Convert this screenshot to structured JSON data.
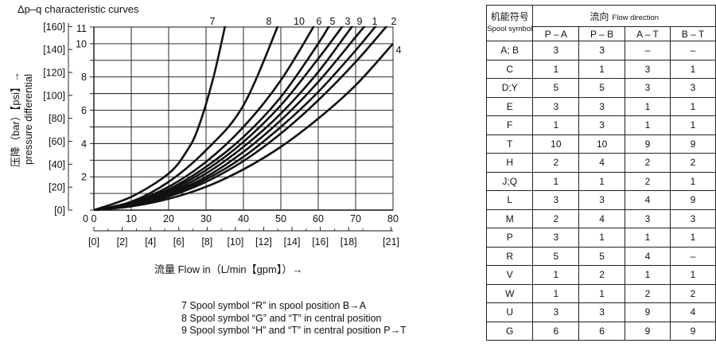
{
  "chart_data": {
    "type": "line",
    "title": "Δp–q characteristic curves",
    "xlabel": "流量 Flow in（L/min【gpm】）→",
    "ylabel_cn": "压降（bar）【psi】→",
    "ylabel_en": "pressure differential",
    "xlim": [
      0,
      80
    ],
    "ylim": [
      0,
      11
    ],
    "x_ticks": [
      "0",
      "10",
      "20",
      "30",
      "40",
      "50",
      "60",
      "70",
      "80"
    ],
    "x_ticks_gpm": [
      "[0]",
      "[2]",
      "[4]",
      "[6]",
      "[8]",
      "[10]",
      "[12]",
      "[14]",
      "[16]",
      "[18]",
      "[21]"
    ],
    "y_ticks": [
      "2",
      "4",
      "6",
      "8",
      "10",
      "11"
    ],
    "y_ticks_psi": [
      "[0]",
      "[20]",
      "[40]",
      "[60]",
      "[80]",
      "[100]",
      "[120]",
      "[140]",
      "[160]"
    ],
    "series": [
      {
        "name": "7",
        "points": [
          [
            0,
            0
          ],
          [
            10,
            0.8
          ],
          [
            20,
            2.2
          ],
          [
            25,
            3.6
          ],
          [
            28,
            5
          ],
          [
            32,
            8
          ],
          [
            35.5,
            11.5
          ]
        ]
      },
      {
        "name": "8",
        "points": [
          [
            0,
            0
          ],
          [
            10,
            0.5
          ],
          [
            20,
            1.7
          ],
          [
            30,
            3.6
          ],
          [
            40,
            6.3
          ],
          [
            50,
            11.5
          ]
        ]
      },
      {
        "name": "10",
        "points": [
          [
            0,
            0
          ],
          [
            10,
            0.45
          ],
          [
            20,
            1.4
          ],
          [
            30,
            2.9
          ],
          [
            40,
            5.0
          ],
          [
            50,
            7.8
          ],
          [
            60,
            11.5
          ]
        ]
      },
      {
        "name": "6",
        "points": [
          [
            0,
            0
          ],
          [
            10,
            0.4
          ],
          [
            20,
            1.25
          ],
          [
            30,
            2.6
          ],
          [
            40,
            4.4
          ],
          [
            50,
            6.8
          ],
          [
            60,
            10
          ],
          [
            64,
            11.5
          ]
        ]
      },
      {
        "name": "5",
        "points": [
          [
            0,
            0
          ],
          [
            10,
            0.38
          ],
          [
            20,
            1.15
          ],
          [
            30,
            2.4
          ],
          [
            40,
            4.1
          ],
          [
            50,
            6.3
          ],
          [
            60,
            9.1
          ],
          [
            68,
            11.5
          ]
        ]
      },
      {
        "name": "3",
        "points": [
          [
            0,
            0
          ],
          [
            10,
            0.35
          ],
          [
            20,
            1.05
          ],
          [
            30,
            2.2
          ],
          [
            40,
            3.8
          ],
          [
            50,
            5.8
          ],
          [
            60,
            8.3
          ],
          [
            70,
            11.3
          ],
          [
            72,
            11.5
          ]
        ]
      },
      {
        "name": "9",
        "points": [
          [
            0,
            0
          ],
          [
            10,
            0.32
          ],
          [
            20,
            0.97
          ],
          [
            30,
            2.0
          ],
          [
            40,
            3.5
          ],
          [
            50,
            5.4
          ],
          [
            60,
            7.7
          ],
          [
            70,
            10.4
          ],
          [
            74,
            11.5
          ]
        ]
      },
      {
        "name": "1",
        "points": [
          [
            0,
            0
          ],
          [
            10,
            0.3
          ],
          [
            20,
            0.9
          ],
          [
            30,
            1.85
          ],
          [
            40,
            3.2
          ],
          [
            50,
            5.0
          ],
          [
            60,
            7.1
          ],
          [
            70,
            9.6
          ],
          [
            77,
            11.5
          ]
        ]
      },
      {
        "name": "2",
        "points": [
          [
            0,
            0
          ],
          [
            10,
            0.27
          ],
          [
            20,
            0.82
          ],
          [
            30,
            1.7
          ],
          [
            40,
            2.95
          ],
          [
            50,
            4.6
          ],
          [
            60,
            6.6
          ],
          [
            70,
            8.9
          ],
          [
            80,
            11.5
          ]
        ]
      },
      {
        "name": "4",
        "points": [
          [
            0,
            0
          ],
          [
            10,
            0.22
          ],
          [
            20,
            0.68
          ],
          [
            30,
            1.4
          ],
          [
            40,
            2.45
          ],
          [
            50,
            3.8
          ],
          [
            60,
            5.5
          ],
          [
            70,
            7.5
          ],
          [
            80,
            10.0
          ]
        ]
      }
    ]
  },
  "notes": [
    "7 Spool symbol “R” in spool position B→A",
    "8 Spool symbol “G” and “T” in central position",
    "9 Spool symbol “H” and “T” in central position P→T"
  ],
  "table": {
    "symbol_cn": "机能符号",
    "symbol_en": "Spool symbol",
    "flow_cn": "流向",
    "flow_en": "Flow direction",
    "columns": [
      "P – A",
      "P – B",
      "A – T",
      "B – T"
    ],
    "rows": [
      {
        "symbol": "A; B",
        "values": [
          "3",
          "3",
          "–",
          "–"
        ]
      },
      {
        "symbol": "C",
        "values": [
          "1",
          "1",
          "3",
          "1"
        ]
      },
      {
        "symbol": "D;Y",
        "values": [
          "5",
          "5",
          "3",
          "3"
        ]
      },
      {
        "symbol": "E",
        "values": [
          "3",
          "3",
          "1",
          "1"
        ]
      },
      {
        "symbol": "F",
        "values": [
          "1",
          "3",
          "1",
          "1"
        ]
      },
      {
        "symbol": "T",
        "values": [
          "10",
          "10",
          "9",
          "9"
        ]
      },
      {
        "symbol": "H",
        "values": [
          "2",
          "4",
          "2",
          "2"
        ]
      },
      {
        "symbol": "J;Q",
        "values": [
          "1",
          "1",
          "2",
          "1"
        ]
      },
      {
        "symbol": "L",
        "values": [
          "3",
          "3",
          "4",
          "9"
        ]
      },
      {
        "symbol": "M",
        "values": [
          "2",
          "4",
          "3",
          "3"
        ]
      },
      {
        "symbol": "P",
        "values": [
          "3",
          "1",
          "1",
          "1"
        ]
      },
      {
        "symbol": "R",
        "values": [
          "5",
          "5",
          "4",
          "–"
        ]
      },
      {
        "symbol": "V",
        "values": [
          "1",
          "2",
          "1",
          "1"
        ]
      },
      {
        "symbol": "W",
        "values": [
          "1",
          "1",
          "2",
          "2"
        ]
      },
      {
        "symbol": "U",
        "values": [
          "3",
          "3",
          "9",
          "4"
        ]
      },
      {
        "symbol": "G",
        "values": [
          "6",
          "6",
          "9",
          "9"
        ]
      }
    ]
  }
}
